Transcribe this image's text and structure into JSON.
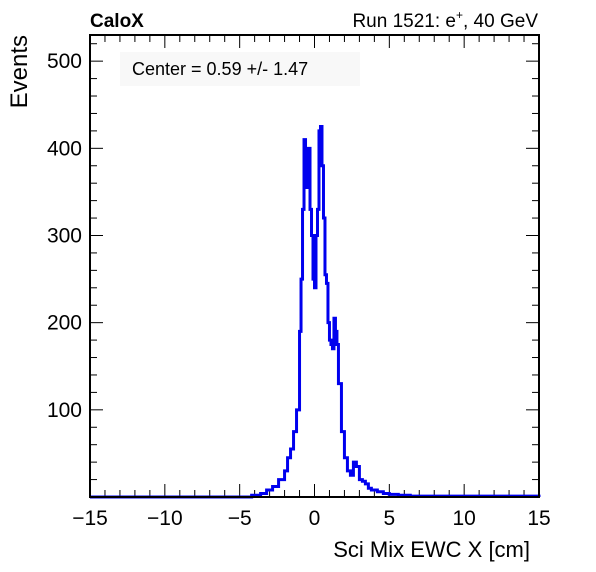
{
  "header": {
    "experiment": "CaloX",
    "run_prefix": "Run 1521: e",
    "run_sup": "+",
    "run_suffix": ", 40 GeV"
  },
  "annotation": "Center = 0.59 +/- 1.47",
  "colors": {
    "line": "#0000ee",
    "axis": "#000000",
    "stat_box": "#f8f8f8"
  },
  "chart_data": {
    "type": "line",
    "title": "",
    "xlabel": "Sci Mix EWC X [cm]",
    "ylabel": "Events",
    "xlim": [
      -15,
      15
    ],
    "ylim": [
      0,
      530
    ],
    "xticks": [
      -15,
      -10,
      -5,
      0,
      5,
      10,
      15
    ],
    "xtick_labels": [
      "−15",
      "−10",
      "−5",
      "0",
      "5",
      "10",
      "15"
    ],
    "yticks": [
      100,
      200,
      300,
      400,
      500
    ],
    "ytick_labels": [
      "100",
      "200",
      "300",
      "400",
      "500"
    ],
    "grid": false,
    "legend": "none",
    "series": [
      {
        "x": [
          -15,
          -4.2,
          -3.6,
          -3.2,
          -2.8,
          -2.4,
          -2.0,
          -1.8,
          -1.6,
          -1.4,
          -1.2,
          -1.0,
          -0.9,
          -0.8,
          -0.7,
          -0.6,
          -0.5,
          -0.4,
          -0.3,
          -0.2,
          -0.1,
          0.0,
          0.1,
          0.2,
          0.3,
          0.4,
          0.5,
          0.6,
          0.7,
          0.8,
          0.9,
          1.0,
          1.1,
          1.2,
          1.3,
          1.4,
          1.5,
          1.6,
          1.8,
          2.0,
          2.2,
          2.4,
          2.6,
          2.8,
          3.0,
          3.2,
          3.4,
          3.6,
          3.8,
          4.2,
          4.6,
          5.0,
          5.6,
          6.4,
          15
        ],
        "y": [
          0,
          2,
          4,
          8,
          12,
          20,
          30,
          45,
          55,
          75,
          100,
          190,
          250,
          330,
          410,
          380,
          355,
          400,
          330,
          300,
          250,
          240,
          300,
          330,
          420,
          425,
          380,
          320,
          255,
          245,
          200,
          180,
          175,
          170,
          205,
          190,
          175,
          130,
          75,
          45,
          30,
          25,
          40,
          35,
          20,
          18,
          15,
          10,
          8,
          6,
          4,
          3,
          2,
          1,
          0
        ]
      }
    ]
  }
}
